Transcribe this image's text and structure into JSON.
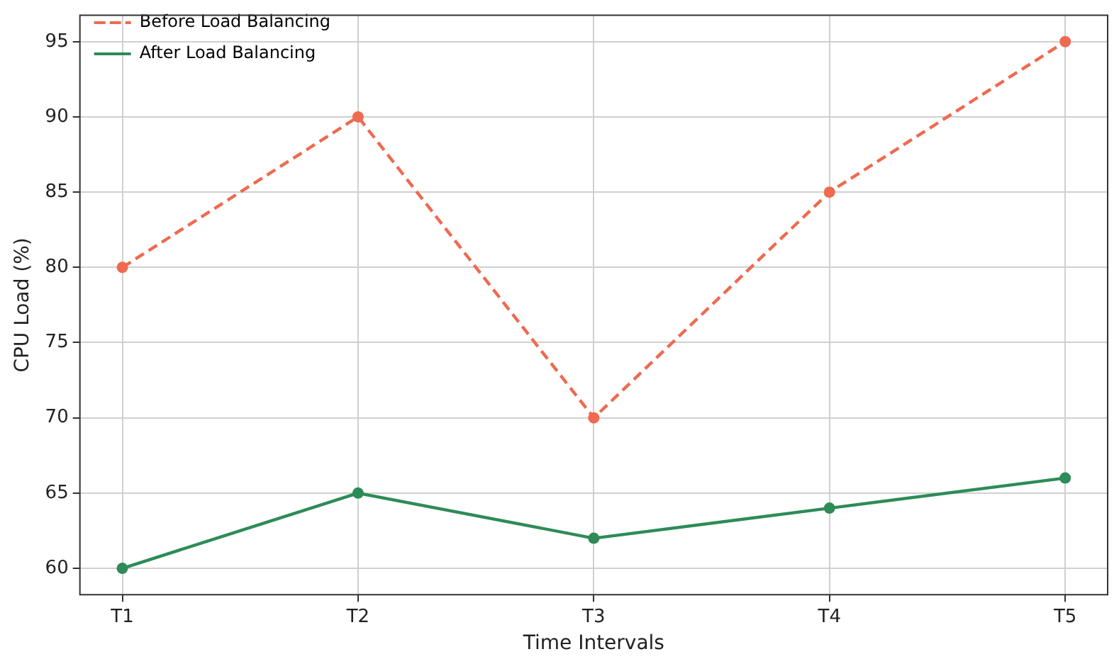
{
  "chart_data": {
    "type": "line",
    "xlabel": "Time Intervals",
    "ylabel": "CPU Load (%)",
    "categories": [
      "T1",
      "T2",
      "T3",
      "T4",
      "T5"
    ],
    "series": [
      {
        "name": "Before Load Balancing",
        "color": "#ee6a50",
        "values": [
          80,
          90,
          70,
          85,
          95
        ],
        "line_style": "dashed"
      },
      {
        "name": "After Load Balancing",
        "color": "#2e8b57",
        "values": [
          60,
          65,
          62,
          64,
          66
        ],
        "line_style": "solid"
      }
    ],
    "ylim": [
      58.25,
      96.75
    ],
    "yticks": [
      60,
      65,
      70,
      75,
      80,
      85,
      90,
      95
    ],
    "grid": true,
    "legend": "top left",
    "marker": "circle"
  }
}
